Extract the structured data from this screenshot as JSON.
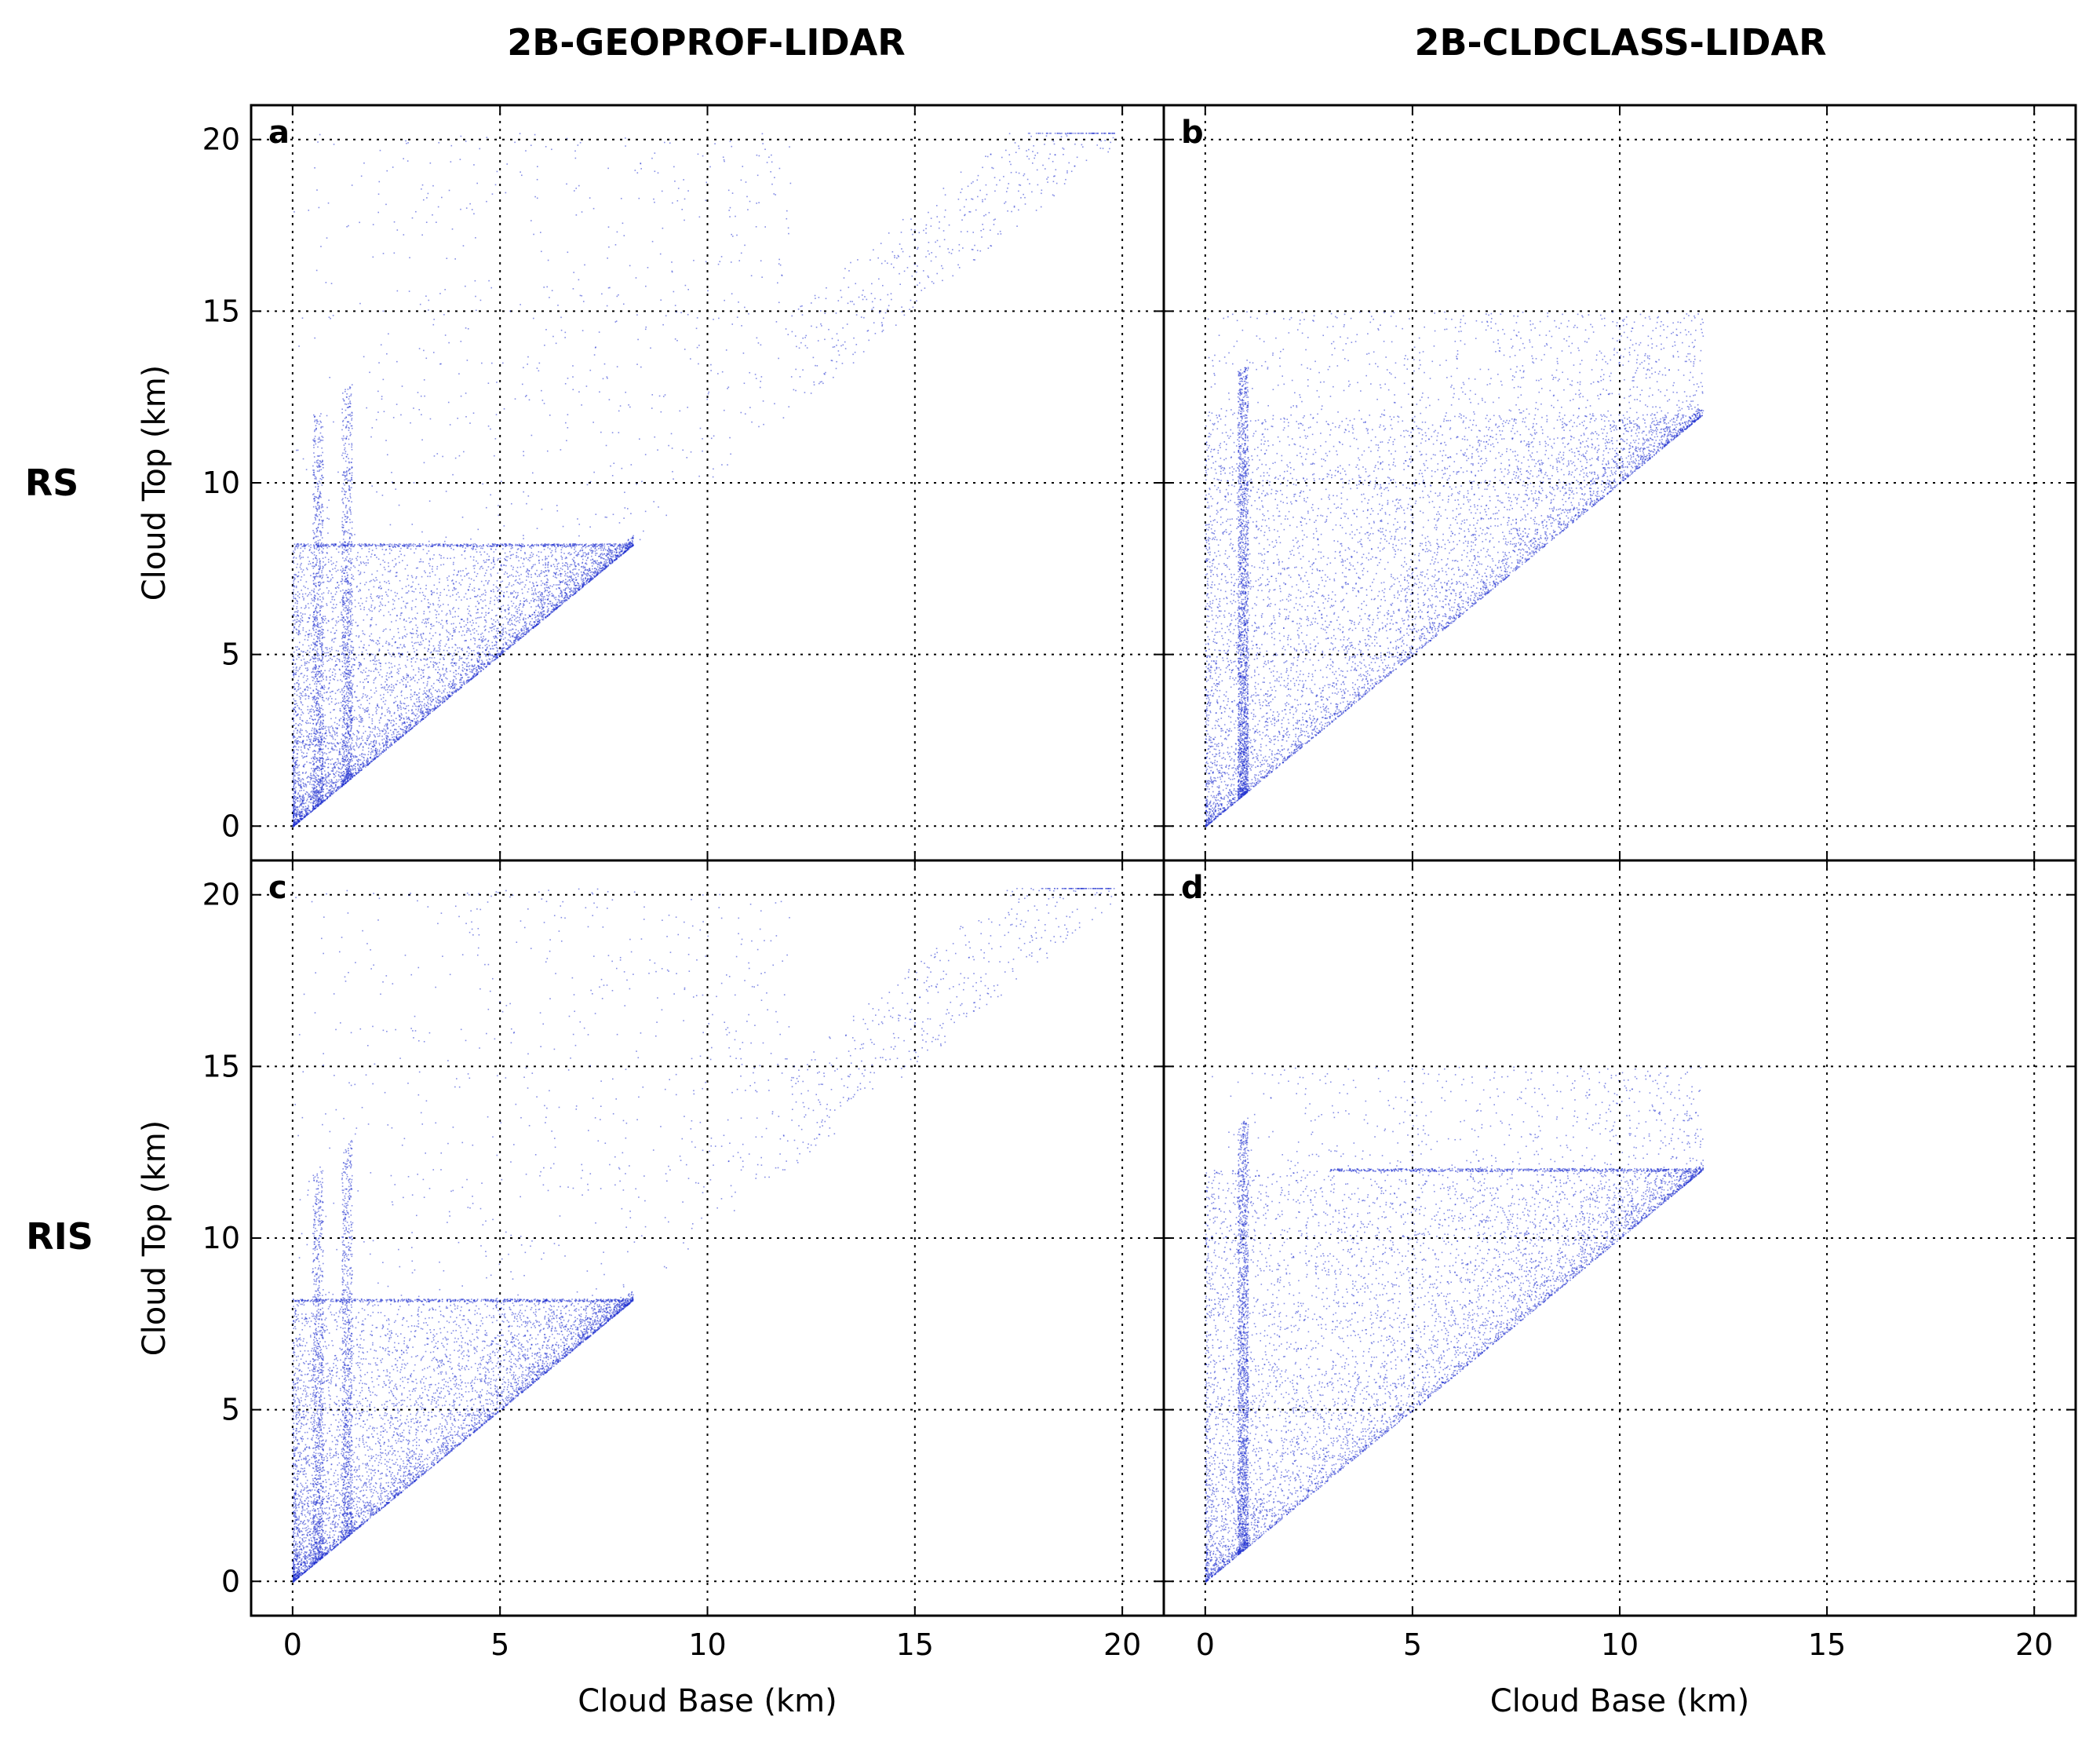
{
  "figure": {
    "column_titles": [
      "2B-GEOPROF-LIDAR",
      "2B-CLDCLASS-LIDAR"
    ],
    "row_labels": [
      "RS",
      "RIS"
    ],
    "xlabel": "Cloud Base (km)",
    "ylabel": "Cloud Top (km)",
    "point_color": "#1f2fd0"
  },
  "chart_data": [
    {
      "type": "scatter",
      "panel": "a",
      "product": "2B-GEOPROF-LIDAR",
      "row": "RS",
      "xlabel": "Cloud Base (km)",
      "ylabel": "Cloud Top (km)",
      "xlim": [
        -1,
        21
      ],
      "ylim": [
        -1,
        21
      ],
      "xticks": [
        0,
        5,
        10,
        15,
        20
      ],
      "yticks": [
        0,
        5,
        10,
        15,
        20
      ],
      "grid": true,
      "features": {
        "dense_region": {
          "x": [
            0,
            8.2
          ],
          "y": [
            0,
            8.2
          ],
          "description": "cloud top >= cloud base, filled below y=8.2"
        },
        "horizontal_band_y": 8.2,
        "vertical_band_x": 8.2,
        "vertical_streaks_x": [
          0.6,
          1.3
        ],
        "sparse_upper_limit_y": 20.2
      },
      "n_points_rendered": 9000
    },
    {
      "type": "scatter",
      "panel": "b",
      "product": "2B-CLDCLASS-LIDAR",
      "row": "RS",
      "xlabel": "Cloud Base (km)",
      "ylabel": "Cloud Top (km)",
      "xlim": [
        -1,
        21
      ],
      "ylim": [
        -1,
        21
      ],
      "xticks": [
        0,
        5,
        10,
        15,
        20
      ],
      "yticks": [
        0,
        5,
        10,
        15,
        20
      ],
      "grid": true,
      "features": {
        "dense_region": {
          "x": [
            0,
            12
          ],
          "y": [
            0,
            12
          ],
          "description": "cloud top >= cloud base, cloud base <= 12"
        },
        "vertical_streaks_x": [
          0.9
        ],
        "sparse_upper_limit_y": 15
      },
      "n_points_rendered": 9000
    },
    {
      "type": "scatter",
      "panel": "c",
      "product": "2B-GEOPROF-LIDAR",
      "row": "RIS",
      "xlabel": "Cloud Base (km)",
      "ylabel": "Cloud Top (km)",
      "xlim": [
        -1,
        21
      ],
      "ylim": [
        -1,
        21
      ],
      "xticks": [
        0,
        5,
        10,
        15,
        20
      ],
      "yticks": [
        0,
        5,
        10,
        15,
        20
      ],
      "grid": true,
      "features": {
        "dense_region": {
          "x": [
            0,
            8.2
          ],
          "y": [
            0,
            8.2
          ],
          "description": "cloud top >= cloud base, filled below y=8.2"
        },
        "horizontal_band_y": 8.2,
        "vertical_band_x": 8.2,
        "vertical_streaks_x": [
          0.6,
          1.3
        ],
        "sparse_upper_limit_y": 20.2
      },
      "n_points_rendered": 9000
    },
    {
      "type": "scatter",
      "panel": "d",
      "product": "2B-CLDCLASS-LIDAR",
      "row": "RIS",
      "xlabel": "Cloud Base (km)",
      "ylabel": "Cloud Top (km)",
      "xlim": [
        -1,
        21
      ],
      "ylim": [
        -1,
        21
      ],
      "xticks": [
        0,
        5,
        10,
        15,
        20
      ],
      "yticks": [
        0,
        5,
        10,
        15,
        20
      ],
      "grid": true,
      "features": {
        "dense_region": {
          "x": [
            0,
            12
          ],
          "y": [
            0,
            12
          ],
          "description": "cloud top >= cloud base, cloud base <= 12"
        },
        "horizontal_band_y": 12,
        "vertical_streaks_x": [
          0.9
        ],
        "sparse_upper_limit_y": 15
      },
      "n_points_rendered": 9000
    }
  ]
}
